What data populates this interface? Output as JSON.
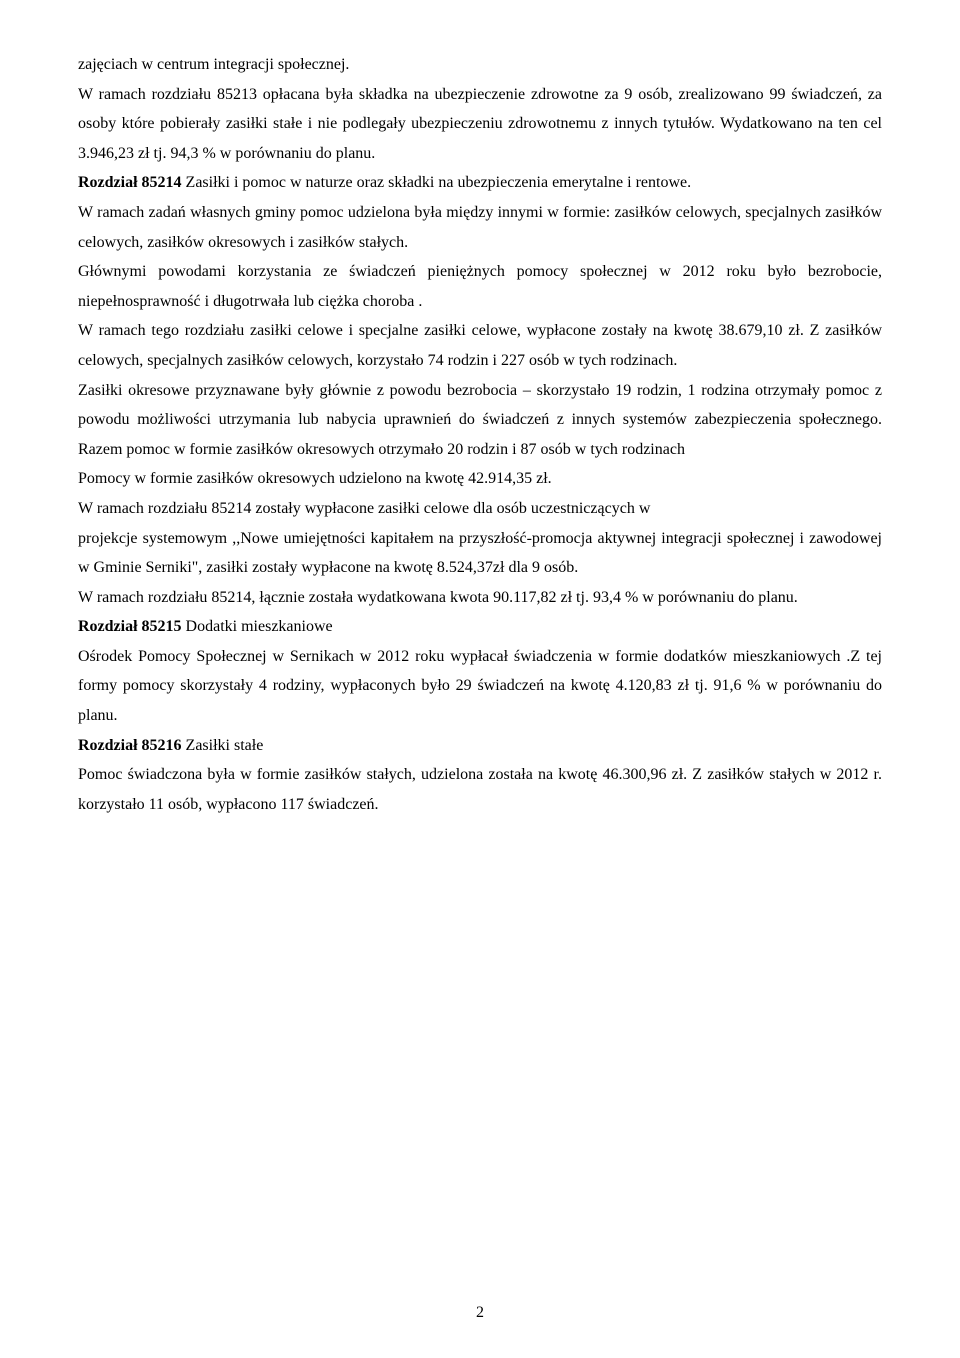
{
  "p1": "zajęciach w centrum integracji społecznej.",
  "p2": "W ramach rozdziału 85213 opłacana była składka na ubezpieczenie zdrowotne za 9 osób, zrealizowano 99 świadczeń, za osoby które pobierały zasiłki stałe i nie podlegały ubezpieczeniu zdrowotnemu z innych tytułów. Wydatkowano na ten cel 3.946,23 zł  tj. 94,3 % w porównaniu do planu.",
  "h1": "Rozdział 85214",
  "h1_rest": "  Zasiłki i pomoc w naturze oraz składki na ubezpieczenia emerytalne i rentowe.",
  "p3": "W ramach zadań własnych gminy pomoc udzielona była między innymi w formie: zasiłków celowych, specjalnych zasiłków celowych, zasiłków okresowych i zasiłków stałych.",
  "p4": "Głównymi powodami korzystania ze świadczeń pieniężnych pomocy społecznej w  2012 roku było bezrobocie, niepełnosprawność i długotrwała lub ciężka choroba .",
  "p5": "W ramach tego rozdziału zasiłki celowe i specjalne zasiłki celowe, wypłacone zostały na kwotę 38.679,10 zł. Z zasiłków celowych, specjalnych zasiłków celowych, korzystało 74 rodzin i  227 osób  w tych rodzinach.",
  "p6": "Zasiłki okresowe przyznawane były głównie z powodu bezrobocia – skorzystało 19 rodzin, 1 rodzina otrzymały pomoc z powodu możliwości utrzymania lub nabycia uprawnień do świadczeń z innych systemów zabezpieczenia społecznego. Razem pomoc w formie zasiłków okresowych otrzymało 20 rodzin  i  87 osób w tych rodzinach",
  "p7": " Pomocy w formie zasiłków okresowych udzielono na kwotę 42.914,35 zł.",
  "p8": " W ramach rozdziału 85214 zostały wypłacone zasiłki celowe dla osób uczestniczących w",
  "p9": "projekcje systemowym ,,Nowe umiejętności kapitałem na przyszłość-promocja aktywnej integracji społecznej i zawodowej w Gminie Serniki\", zasiłki zostały wypłacone na kwotę 8.524,37zł dla 9 osób.",
  "p10": "W ramach rozdziału 85214, łącznie została wydatkowana kwota 90.117,82 zł tj. 93,4 % w porównaniu do planu.",
  "h2": "Rozdział 85215",
  "h2_rest": "  Dodatki mieszkaniowe",
  "p11": "Ośrodek Pomocy Społecznej w Sernikach w 2012 roku wypłacał świadczenia w formie dodatków mieszkaniowych .Z tej formy pomocy skorzystały 4 rodziny, wypłaconych było 29 świadczeń na kwotę 4.120,83 zł tj.  91,6 %  w porównaniu do planu.",
  "h3": "Rozdział 85216",
  "h3_rest": "  Zasiłki stałe",
  "p12": " Pomoc świadczona była w formie zasiłków stałych, udzielona została na kwotę 46.300,96 zł. Z zasiłków stałych w  2012 r. korzystało 11  osób, wypłacono 117 świadczeń.",
  "page_number": "2"
}
